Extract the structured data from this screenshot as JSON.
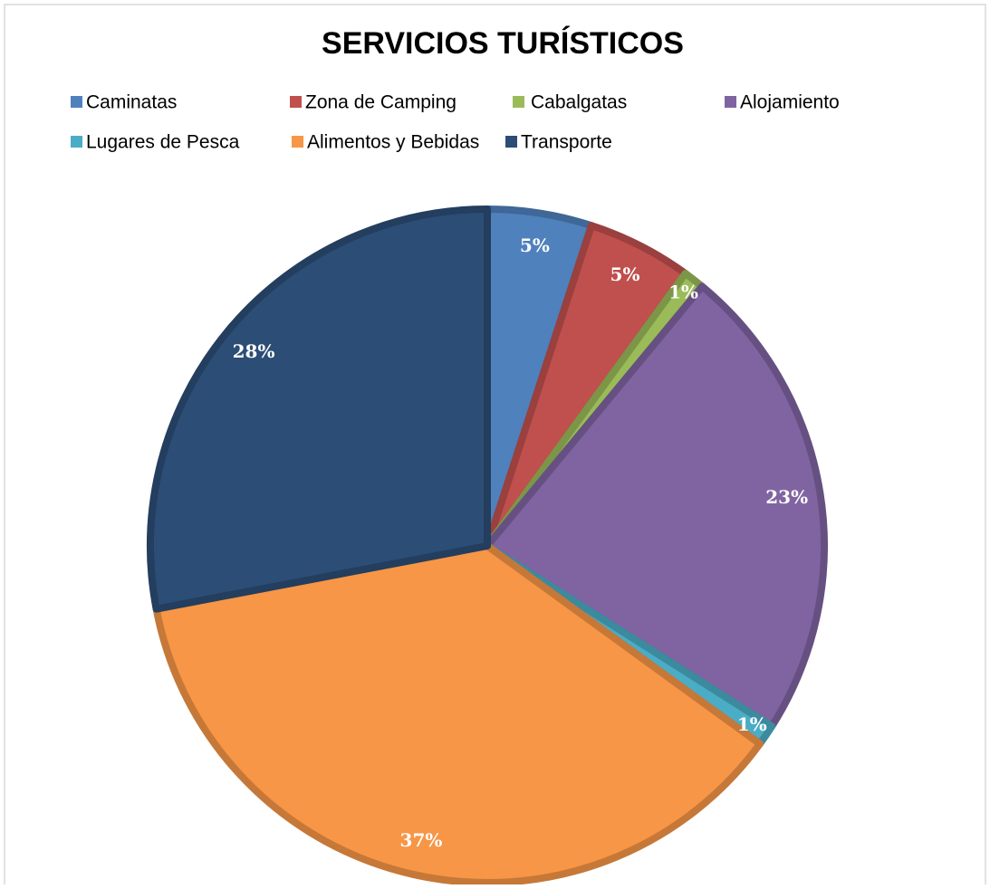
{
  "chart_data": {
    "type": "pie",
    "title": "SERVICIOS TURÍSTICOS",
    "categories": [
      "Caminatas",
      "Zona de Camping",
      "Cabalgatas",
      "Alojamiento",
      "Lugares de Pesca",
      "Alimentos y Bebidas",
      "Transporte"
    ],
    "values": [
      5,
      5,
      1,
      23,
      1,
      37,
      28
    ],
    "value_labels": [
      "5%",
      "5%",
      "1%",
      "23%",
      "1%",
      "37%",
      "28%"
    ],
    "colors": [
      "#4f81bd",
      "#c0504d",
      "#9bbb59",
      "#8064a2",
      "#4bacc6",
      "#f79646",
      "#2c4d75"
    ],
    "legend": "top"
  }
}
